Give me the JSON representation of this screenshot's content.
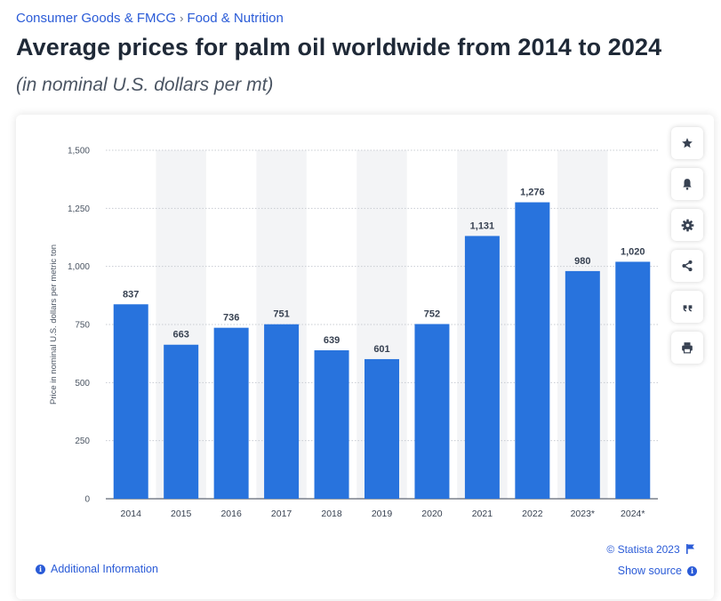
{
  "breadcrumb": {
    "items": [
      "Consumer Goods & FMCG",
      "Food & Nutrition"
    ],
    "separator": "›"
  },
  "page": {
    "title": "Average prices for palm oil worldwide from 2014 to 2024",
    "subtitle": "(in nominal U.S. dollars per mt)"
  },
  "toolbar": {
    "buttons": [
      "star-icon",
      "bell-icon",
      "gear-icon",
      "share-icon",
      "quote-icon",
      "print-icon"
    ]
  },
  "footer": {
    "copyright": "© Statista 2023",
    "additional_info": "Additional Information",
    "show_source": "Show source"
  },
  "colors": {
    "bar": "#2873dd",
    "link": "#2a5bd7",
    "band": "#f3f4f6",
    "grid": "#c8ccd2"
  },
  "chart_data": {
    "type": "bar",
    "title": "",
    "xlabel": "",
    "ylabel": "Price in nominal U.S. dollars per metric ton",
    "categories": [
      "2014",
      "2015",
      "2016",
      "2017",
      "2018",
      "2019",
      "2020",
      "2021",
      "2022",
      "2023*",
      "2024*"
    ],
    "values": [
      837,
      663,
      736,
      751,
      639,
      601,
      752,
      1131,
      1276,
      980,
      1020
    ],
    "value_labels": [
      "837",
      "663",
      "736",
      "751",
      "639",
      "601",
      "752",
      "1,131",
      "1,276",
      "980",
      "1,020"
    ],
    "ylim": [
      0,
      1500
    ],
    "yticks": [
      0,
      250,
      500,
      750,
      1000,
      1250,
      1500
    ],
    "ytick_labels": [
      "0",
      "250",
      "500",
      "750",
      "1,000",
      "1,250",
      "1,500"
    ],
    "grid": true,
    "legend": "none"
  }
}
